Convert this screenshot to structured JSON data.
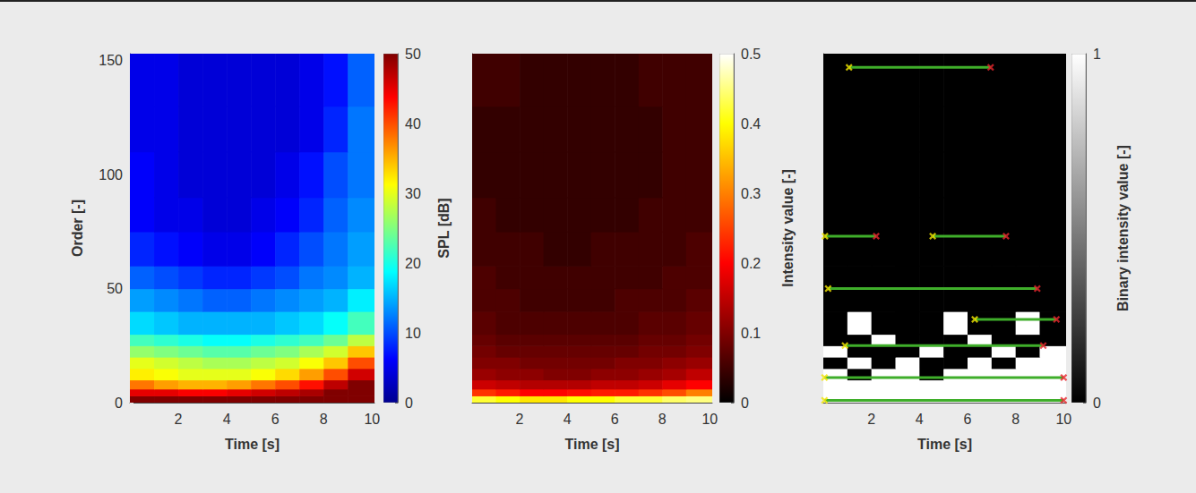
{
  "chart_data": [
    {
      "type": "heatmap",
      "xlabel": "Time [s]",
      "ylabel": "Order [-]",
      "xlim": [
        0,
        10.1
      ],
      "xticks": [
        2,
        4,
        6,
        8,
        10
      ],
      "ylim": [
        0,
        153
      ],
      "yticks": [
        0,
        50,
        100,
        150
      ],
      "time_edges": [
        0,
        1,
        2,
        3,
        4,
        5,
        6,
        7,
        8,
        9,
        10.1
      ],
      "order_edges": [
        0,
        3,
        6,
        10,
        15,
        20,
        25,
        30,
        40,
        50,
        60,
        75,
        90,
        110,
        130,
        153
      ],
      "cells": [
        [
          50,
          50,
          50,
          50,
          50,
          50,
          50,
          50,
          50,
          50
        ],
        [
          45,
          45,
          44,
          44,
          45,
          46,
          47,
          48,
          50,
          50
        ],
        [
          38,
          36,
          35,
          35,
          36,
          38,
          40,
          43,
          47,
          50
        ],
        [
          32,
          31,
          30,
          30,
          30,
          31,
          33,
          36,
          40,
          46
        ],
        [
          30,
          29,
          28,
          27,
          27,
          28,
          29,
          31,
          34,
          40
        ],
        [
          26,
          25,
          24,
          23,
          23,
          24,
          25,
          27,
          29,
          34
        ],
        [
          22,
          21,
          20,
          19,
          19,
          20,
          21,
          22,
          24,
          28
        ],
        [
          17,
          16,
          15,
          15,
          15,
          15,
          16,
          17,
          19,
          22
        ],
        [
          14,
          13,
          12,
          11,
          11,
          12,
          13,
          14,
          15,
          18
        ],
        [
          11,
          10,
          9,
          8,
          8,
          9,
          10,
          12,
          13,
          15
        ],
        [
          8,
          7,
          6,
          5,
          5,
          6,
          8,
          10,
          12,
          14
        ],
        [
          6,
          5,
          5,
          4,
          4,
          5,
          6,
          8,
          11,
          13
        ],
        [
          6,
          5,
          4,
          4,
          4,
          4,
          5,
          7,
          10,
          12
        ],
        [
          5,
          5,
          4,
          4,
          4,
          4,
          4,
          5,
          8,
          12
        ],
        [
          5,
          5,
          4,
          4,
          4,
          4,
          4,
          5,
          7,
          11
        ]
      ],
      "colorbar": {
        "label": "SPL [dB]",
        "range": [
          0,
          50
        ],
        "ticks": [
          0,
          10,
          20,
          30,
          40,
          50
        ],
        "color": "jet"
      }
    },
    {
      "type": "heatmap",
      "xlabel": "Time [s]",
      "tick_labels": "x",
      "xlim": [
        0,
        10.1
      ],
      "xticks": [
        2,
        4,
        6,
        8,
        10
      ],
      "ylim": [
        0,
        153
      ],
      "time_edges": [
        0,
        1,
        2,
        3,
        4,
        5,
        6,
        7,
        8,
        9,
        10.1
      ],
      "order_edges": [
        0,
        3,
        6,
        10,
        15,
        20,
        25,
        30,
        40,
        50,
        60,
        75,
        90,
        110,
        130,
        153
      ],
      "cells": [
        [
          0.42,
          0.4,
          0.38,
          0.38,
          0.4,
          0.4,
          0.42,
          0.42,
          0.44,
          0.45
        ],
        [
          0.24,
          0.22,
          0.2,
          0.2,
          0.21,
          0.22,
          0.22,
          0.24,
          0.26,
          0.3
        ],
        [
          0.16,
          0.15,
          0.14,
          0.14,
          0.14,
          0.15,
          0.15,
          0.16,
          0.18,
          0.2
        ],
        [
          0.12,
          0.11,
          0.11,
          0.1,
          0.1,
          0.11,
          0.11,
          0.12,
          0.13,
          0.15
        ],
        [
          0.1,
          0.1,
          0.09,
          0.09,
          0.09,
          0.09,
          0.1,
          0.1,
          0.11,
          0.12
        ],
        [
          0.09,
          0.08,
          0.08,
          0.08,
          0.08,
          0.08,
          0.08,
          0.09,
          0.09,
          0.1
        ],
        [
          0.08,
          0.07,
          0.07,
          0.07,
          0.07,
          0.07,
          0.07,
          0.08,
          0.08,
          0.09
        ],
        [
          0.07,
          0.06,
          0.06,
          0.06,
          0.06,
          0.06,
          0.06,
          0.07,
          0.07,
          0.08
        ],
        [
          0.06,
          0.06,
          0.05,
          0.05,
          0.05,
          0.05,
          0.06,
          0.06,
          0.06,
          0.07
        ],
        [
          0.06,
          0.05,
          0.05,
          0.05,
          0.05,
          0.05,
          0.05,
          0.05,
          0.06,
          0.06
        ],
        [
          0.05,
          0.05,
          0.05,
          0.04,
          0.04,
          0.05,
          0.05,
          0.05,
          0.05,
          0.06
        ],
        [
          0.05,
          0.04,
          0.04,
          0.04,
          0.04,
          0.04,
          0.04,
          0.05,
          0.05,
          0.05
        ],
        [
          0.04,
          0.04,
          0.04,
          0.04,
          0.04,
          0.04,
          0.04,
          0.04,
          0.05,
          0.05
        ],
        [
          0.04,
          0.04,
          0.04,
          0.04,
          0.04,
          0.04,
          0.04,
          0.04,
          0.05,
          0.05
        ],
        [
          0.05,
          0.05,
          0.04,
          0.04,
          0.04,
          0.04,
          0.04,
          0.05,
          0.05,
          0.05
        ]
      ],
      "colorbar": {
        "label": "Intensity value [-]",
        "range": [
          0,
          0.5
        ],
        "ticks": [
          0,
          0.1,
          0.2,
          0.3,
          0.4,
          0.5
        ],
        "color": "hot"
      }
    },
    {
      "type": "heatmap",
      "xlabel": "Time [s]",
      "tick_labels": "x",
      "xlim": [
        0,
        10.1
      ],
      "xticks": [
        2,
        4,
        6,
        8,
        10
      ],
      "ylim": [
        0,
        153
      ],
      "time_edges": [
        0,
        1,
        2,
        3,
        4,
        5,
        6,
        7,
        8,
        9,
        10.1
      ],
      "order_edges": [
        0,
        3,
        6,
        10,
        15,
        20,
        25,
        30,
        40,
        50,
        60,
        75,
        90,
        110,
        130,
        153
      ],
      "cells": [
        [
          1,
          1,
          1,
          1,
          1,
          1,
          1,
          1,
          1,
          1
        ],
        [
          1,
          1,
          1,
          1,
          1,
          1,
          1,
          1,
          1,
          1
        ],
        [
          1,
          1,
          1,
          1,
          1,
          1,
          1,
          1,
          1,
          1
        ],
        [
          1,
          0,
          1,
          1,
          0,
          1,
          1,
          1,
          1,
          1
        ],
        [
          0,
          1,
          0,
          1,
          0,
          0,
          1,
          0,
          1,
          1
        ],
        [
          1,
          0,
          0,
          0,
          1,
          0,
          0,
          1,
          0,
          1
        ],
        [
          0,
          0,
          1,
          0,
          0,
          0,
          1,
          0,
          0,
          0
        ],
        [
          0,
          1,
          0,
          0,
          0,
          1,
          0,
          0,
          1,
          0
        ],
        [
          0,
          0,
          0,
          0,
          0,
          0,
          0,
          0,
          0,
          0
        ],
        [
          0,
          0,
          0,
          0,
          0,
          0,
          0,
          0,
          0,
          0
        ],
        [
          0,
          0,
          0,
          0,
          0,
          0,
          0,
          0,
          0,
          0
        ],
        [
          0,
          0,
          0,
          0,
          0,
          0,
          0,
          0,
          0,
          0
        ],
        [
          0,
          0,
          0,
          0,
          0,
          0,
          0,
          0,
          0,
          0
        ],
        [
          0,
          0,
          0,
          0,
          0,
          0,
          0,
          0,
          0,
          0
        ],
        [
          0,
          0,
          0,
          0,
          0,
          0,
          0,
          0,
          0,
          0
        ]
      ],
      "colorbar": {
        "label": "Binary intensity value [-]",
        "range": [
          0,
          1
        ],
        "ticks": [
          0,
          1
        ],
        "color": "gray"
      },
      "series": [
        {
          "type": "line",
          "color": "#3fae2a",
          "marker": "x",
          "values": [
            {
              "order": 147,
              "start": 1.07,
              "end": 6.96
            },
            {
              "order": 73,
              "start": 0.07,
              "end": 2.2
            },
            {
              "order": 73,
              "start": 4.55,
              "end": 7.6
            },
            {
              "order": 50,
              "start": 0.2,
              "end": 8.9
            },
            {
              "order": 36.5,
              "start": 6.3,
              "end": 9.7
            },
            {
              "order": 25,
              "start": 0.9,
              "end": 9.15
            },
            {
              "order": 11,
              "start": 0.05,
              "end": 10.0
            },
            {
              "order": 1,
              "start": 0.05,
              "end": 10.0
            }
          ]
        }
      ]
    }
  ]
}
